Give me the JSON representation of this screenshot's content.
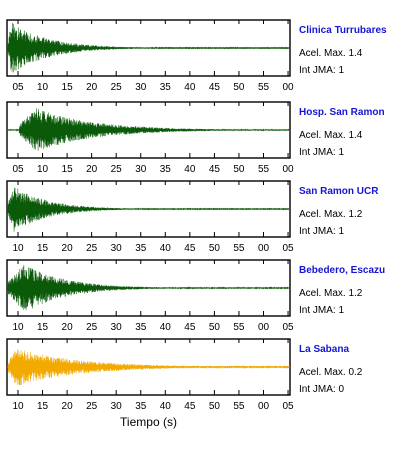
{
  "chart_data": {
    "type": "line",
    "xlabel": "Tiempo (s)",
    "panels": [
      {
        "station": "Clinica Turrubares",
        "accel_label": "Acel. Max. 1.4",
        "intensity_label": "Int JMA: 1",
        "color": "#0a5a0a",
        "tick_labels": [
          "05",
          "10",
          "15",
          "20",
          "25",
          "30",
          "35",
          "40",
          "45",
          "50",
          "55",
          "00"
        ],
        "onset_fraction": 0.0,
        "peak_fraction": 0.012,
        "decay_fraction": 0.13,
        "rel_amplitude": 1.0,
        "noise_floor": 0.02
      },
      {
        "station": "Hosp. San Ramon",
        "accel_label": "Acel. Max. 1.4",
        "intensity_label": "Int JMA: 1",
        "color": "#0a5a0a",
        "tick_labels": [
          "05",
          "10",
          "15",
          "20",
          "25",
          "30",
          "35",
          "40",
          "45",
          "50",
          "55",
          "00"
        ],
        "onset_fraction": 0.04,
        "peak_fraction": 0.1,
        "decay_fraction": 0.2,
        "rel_amplitude": 0.85,
        "noise_floor": 0.04
      },
      {
        "station": "San Ramon UCR",
        "accel_label": "Acel. Max. 1.2",
        "intensity_label": "Int JMA: 1",
        "color": "#0a5a0a",
        "tick_labels": [
          "10",
          "15",
          "20",
          "25",
          "30",
          "35",
          "40",
          "45",
          "50",
          "55",
          "00",
          "05"
        ],
        "onset_fraction": 0.0,
        "peak_fraction": 0.02,
        "decay_fraction": 0.12,
        "rel_amplitude": 0.9,
        "noise_floor": 0.02
      },
      {
        "station": "Bebedero, Escazu",
        "accel_label": "Acel. Max. 1.2",
        "intensity_label": "Int JMA: 1",
        "color": "#0a5a0a",
        "tick_labels": [
          "10",
          "15",
          "20",
          "25",
          "30",
          "35",
          "40",
          "45",
          "50",
          "55",
          "00",
          "05"
        ],
        "onset_fraction": 0.0,
        "peak_fraction": 0.06,
        "decay_fraction": 0.14,
        "rel_amplitude": 0.95,
        "noise_floor": 0.03
      },
      {
        "station": "La Sabana",
        "accel_label": "Acel. Max. 0.2",
        "intensity_label": "Int JMA: 0",
        "color": "#f2a900",
        "tick_labels": [
          "10",
          "15",
          "20",
          "25",
          "30",
          "35",
          "40",
          "45",
          "50",
          "55",
          "00",
          "05"
        ],
        "onset_fraction": 0.0,
        "peak_fraction": 0.03,
        "decay_fraction": 0.22,
        "rel_amplitude": 0.75,
        "noise_floor": 0.08
      }
    ]
  }
}
